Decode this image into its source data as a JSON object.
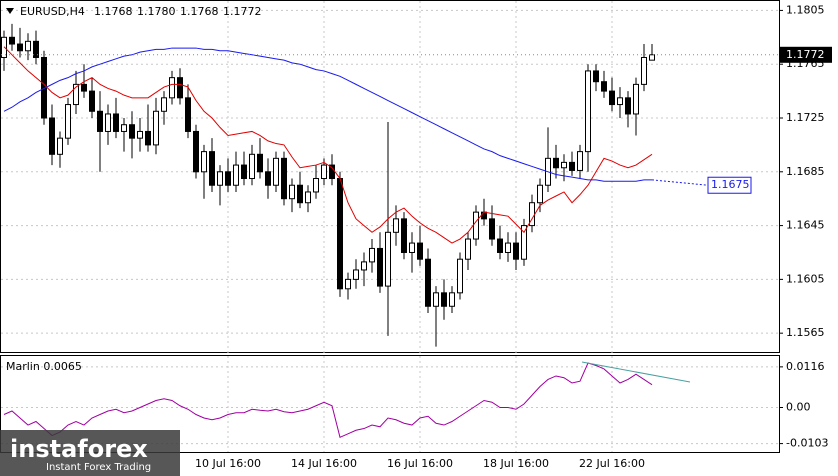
{
  "chart_data": [
    {
      "type": "candlestick",
      "title": "EURUSD,H4",
      "ohlc_header": [
        "1.1768",
        "1.1780",
        "1.1768",
        "1.1772"
      ],
      "categories": [
        null,
        null,
        null,
        null,
        null,
        null,
        null,
        null,
        null,
        null,
        null,
        null,
        null,
        null,
        null,
        null,
        null,
        null,
        null,
        null,
        null,
        null,
        null,
        null,
        null,
        null,
        null,
        null,
        "10 Jul 16:00",
        null,
        null,
        null,
        null,
        null,
        null,
        null,
        null,
        null,
        null,
        null,
        "14 Jul 16:00",
        null,
        null,
        null,
        null,
        null,
        null,
        null,
        null,
        null,
        null,
        null,
        "16 Jul 16:00",
        null,
        null,
        null,
        null,
        null,
        null,
        null,
        null,
        null,
        null,
        null,
        "18 Jul 16:00",
        null,
        null,
        null,
        null,
        null,
        null,
        null,
        null,
        null,
        null,
        null,
        "22 Jul 16:00",
        null,
        null,
        null,
        null,
        null
      ],
      "open": [
        1.177,
        1.1785,
        1.178,
        1.1775,
        1.1782,
        1.177,
        1.1725,
        1.1698,
        1.171,
        1.1735,
        1.175,
        1.1745,
        1.173,
        1.1715,
        1.1728,
        1.1715,
        1.172,
        1.171,
        1.1715,
        1.1705,
        1.173,
        1.174,
        1.1755,
        1.174,
        1.1715,
        1.1685,
        1.17,
        1.1675,
        1.1685,
        1.1675,
        1.169,
        1.168,
        1.1698,
        1.1685,
        1.1675,
        1.1695,
        1.1665,
        1.1675,
        1.1662,
        1.167,
        1.168,
        1.169,
        1.168,
        1.1598,
        1.1605,
        1.1612,
        1.1618,
        1.1628,
        1.16,
        1.164,
        1.165,
        1.1625,
        1.1632,
        1.162,
        1.1585,
        1.1595,
        1.1585,
        1.1595,
        1.162,
        1.1635,
        1.1655,
        1.165,
        1.1635,
        1.1625,
        1.1632,
        1.162,
        1.1645,
        1.1662,
        1.1675,
        1.1695,
        1.1688,
        1.1692,
        1.1686,
        1.17,
        1.176,
        1.1752,
        1.1745,
        1.1735,
        1.174,
        1.1728,
        1.175,
        1.1768
      ],
      "high": [
        1.179,
        1.1795,
        1.1792,
        1.1788,
        1.179,
        1.1775,
        1.1735,
        1.1715,
        1.174,
        1.176,
        1.1765,
        1.1755,
        1.1745,
        1.1735,
        1.174,
        1.1725,
        1.173,
        1.1725,
        1.1735,
        1.174,
        1.1745,
        1.176,
        1.1762,
        1.175,
        1.172,
        1.1705,
        1.171,
        1.169,
        1.1695,
        1.17,
        1.17,
        1.1705,
        1.171,
        1.1695,
        1.17,
        1.17,
        1.168,
        1.1685,
        1.1675,
        1.169,
        1.1695,
        1.1698,
        1.1685,
        1.161,
        1.162,
        1.1625,
        1.1635,
        1.164,
        1.1722,
        1.166,
        1.1655,
        1.164,
        1.1645,
        1.1628,
        1.16,
        1.1605,
        1.16,
        1.1625,
        1.164,
        1.166,
        1.1665,
        1.166,
        1.1645,
        1.164,
        1.164,
        1.165,
        1.1668,
        1.168,
        1.1718,
        1.1705,
        1.1698,
        1.17,
        1.1705,
        1.1765,
        1.1765,
        1.176,
        1.1755,
        1.1748,
        1.1745,
        1.1755,
        1.178,
        1.178
      ],
      "low": [
        1.176,
        1.1775,
        1.177,
        1.1768,
        1.1765,
        1.172,
        1.169,
        1.1688,
        1.1705,
        1.1728,
        1.174,
        1.1725,
        1.1685,
        1.1705,
        1.171,
        1.17,
        1.1695,
        1.17,
        1.17,
        1.1698,
        1.172,
        1.1735,
        1.1735,
        1.171,
        1.168,
        1.1665,
        1.167,
        1.166,
        1.167,
        1.167,
        1.1675,
        1.1675,
        1.168,
        1.1665,
        1.167,
        1.166,
        1.1655,
        1.1658,
        1.1655,
        1.1665,
        1.1675,
        1.1675,
        1.1592,
        1.159,
        1.1598,
        1.16,
        1.161,
        1.1595,
        1.1563,
        1.163,
        1.162,
        1.161,
        1.1615,
        1.158,
        1.1555,
        1.1575,
        1.158,
        1.159,
        1.1612,
        1.163,
        1.1645,
        1.163,
        1.162,
        1.1618,
        1.1612,
        1.1615,
        1.164,
        1.1655,
        1.167,
        1.168,
        1.1678,
        1.1682,
        1.168,
        1.1685,
        1.1745,
        1.174,
        1.173,
        1.1725,
        1.1718,
        1.1712,
        1.1745,
        1.1768
      ],
      "close": [
        1.1785,
        1.178,
        1.1775,
        1.1782,
        1.177,
        1.1725,
        1.1698,
        1.171,
        1.1735,
        1.175,
        1.1745,
        1.173,
        1.1715,
        1.1728,
        1.1715,
        1.172,
        1.171,
        1.1715,
        1.1705,
        1.173,
        1.174,
        1.1755,
        1.174,
        1.1715,
        1.1685,
        1.17,
        1.1675,
        1.1685,
        1.1675,
        1.169,
        1.168,
        1.1698,
        1.1685,
        1.1675,
        1.1695,
        1.1665,
        1.1675,
        1.1662,
        1.167,
        1.168,
        1.169,
        1.168,
        1.1598,
        1.1605,
        1.1612,
        1.1618,
        1.1628,
        1.16,
        1.164,
        1.165,
        1.1625,
        1.1632,
        1.162,
        1.1585,
        1.1595,
        1.1585,
        1.1595,
        1.162,
        1.1635,
        1.1655,
        1.165,
        1.1635,
        1.1625,
        1.1632,
        1.162,
        1.1645,
        1.1662,
        1.1675,
        1.1695,
        1.1688,
        1.1692,
        1.1686,
        1.17,
        1.176,
        1.1752,
        1.1745,
        1.1735,
        1.174,
        1.1728,
        1.175,
        1.177,
        1.1772
      ],
      "series": [
        {
          "color": "#e00000",
          "values": [
            1.1778,
            1.1772,
            1.1766,
            1.176,
            1.1755,
            1.175,
            1.1744,
            1.174,
            1.1742,
            1.1748,
            1.1752,
            1.1755,
            1.175,
            1.1747,
            1.1745,
            1.1742,
            1.174,
            1.174,
            1.174,
            1.1744,
            1.1748,
            1.175,
            1.175,
            1.1748,
            1.1738,
            1.173,
            1.1725,
            1.1718,
            1.1712,
            1.1713,
            1.1714,
            1.1715,
            1.1712,
            1.1708,
            1.1706,
            1.1705,
            1.1696,
            1.1688,
            1.1689,
            1.169,
            1.1692,
            1.1688,
            1.168,
            1.1662,
            1.165,
            1.1645,
            1.164,
            1.1644,
            1.165,
            1.1655,
            1.1658,
            1.1652,
            1.1647,
            1.1643,
            1.164,
            1.1636,
            1.1632,
            1.1635,
            1.164,
            1.1648,
            1.1655,
            1.1654,
            1.1653,
            1.1652,
            1.1646,
            1.164,
            1.165,
            1.166,
            1.1664,
            1.1667,
            1.167,
            1.1662,
            1.1668,
            1.1675,
            1.1685,
            1.1695,
            1.1693,
            1.169,
            1.1688,
            1.169,
            1.1694,
            1.1698
          ]
        },
        {
          "color": "#1a1aee",
          "values": [
            1.173,
            1.1733,
            1.1737,
            1.174,
            1.1744,
            1.1747,
            1.175,
            1.1753,
            1.1755,
            1.1758,
            1.176,
            1.1763,
            1.1765,
            1.1767,
            1.1769,
            1.1771,
            1.1772,
            1.1774,
            1.1775,
            1.1776,
            1.1776,
            1.1777,
            1.1777,
            1.1777,
            1.1777,
            1.1776,
            1.1776,
            1.1775,
            1.1775,
            1.1774,
            1.1773,
            1.1772,
            1.1771,
            1.177,
            1.1769,
            1.1768,
            1.1766,
            1.1765,
            1.1763,
            1.1761,
            1.176,
            1.1758,
            1.1756,
            1.1753,
            1.175,
            1.1747,
            1.1744,
            1.1741,
            1.1738,
            1.1735,
            1.1732,
            1.1729,
            1.1726,
            1.1723,
            1.172,
            1.1717,
            1.1714,
            1.1711,
            1.1708,
            1.1705,
            1.1702,
            1.17,
            1.1697,
            1.1695,
            1.1693,
            1.1691,
            1.1689,
            1.1687,
            1.1685,
            1.1683,
            1.1682,
            1.1681,
            1.168,
            1.1679,
            1.1679,
            1.1678,
            1.1678,
            1.1678,
            1.1678,
            1.1678,
            1.1679,
            1.1679
          ]
        }
      ],
      "ma_label": 1.1675,
      "ylim": [
        1.1551,
        1.1812
      ],
      "yticks": [
        1.1805,
        1.1765,
        1.1725,
        1.1685,
        1.1645,
        1.1605,
        1.1565
      ],
      "grid": true
    },
    {
      "type": "line",
      "title": "Marlin",
      "series": [
        {
          "color": "#a000a0",
          "values": [
            -0.002,
            -0.001,
            -0.003,
            -0.005,
            -0.004,
            -0.006,
            -0.008,
            -0.007,
            -0.005,
            -0.004,
            -0.005,
            -0.003,
            -0.002,
            -0.001,
            -0.0005,
            -0.0015,
            -0.001,
            0.0,
            0.001,
            0.002,
            0.0025,
            0.002,
            0.0005,
            -0.0005,
            -0.002,
            -0.003,
            -0.0035,
            -0.003,
            -0.002,
            -0.0015,
            -0.0015,
            -0.0005,
            -0.0008,
            -0.001,
            -0.0005,
            -0.0012,
            -0.0015,
            -0.001,
            -0.0005,
            0.0005,
            0.0015,
            0.0005,
            -0.0085,
            -0.0075,
            -0.0065,
            -0.006,
            -0.005,
            -0.0055,
            -0.003,
            -0.0035,
            -0.0045,
            -0.005,
            -0.003,
            -0.0025,
            -0.0045,
            -0.005,
            -0.004,
            -0.0025,
            -0.001,
            0.0005,
            0.002,
            0.0015,
            0.0,
            0.0,
            -0.0005,
            0.001,
            0.0035,
            0.006,
            0.008,
            0.009,
            0.0085,
            0.007,
            0.0075,
            0.0127,
            0.012,
            0.011,
            0.009,
            0.007,
            0.008,
            0.0095,
            0.008,
            0.0065
          ]
        }
      ],
      "ylim": [
        -0.0127,
        0.0147
      ],
      "yticks": [
        0.0116,
        {
          "value": 0,
          "label": "0.00"
        },
        -0.0103
      ],
      "grid": true
    }
  ],
  "watermark": {
    "brand": "instaforex",
    "tagline": "Instant Forex Trading"
  }
}
